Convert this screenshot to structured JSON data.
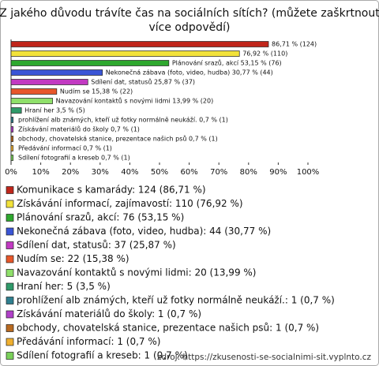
{
  "chart_data": {
    "type": "bar",
    "orientation": "horizontal",
    "title": [
      "Z jakého důvodu trávíte čas na sociálních sítích? (můžete zaškrtnout",
      "více odpovědí)"
    ],
    "categories": [
      "Komunikace s kamarády: 124 (86,71 %)",
      "Získávání informací, zajímavostí: 110 (76,92 %)",
      "Plánování srazů, akcí: 76 (53,15 %)",
      "Nekonečná zábava (foto, video, hudba): 44 (30,77 %)",
      "Sdílení dat, statusů: 37 (25,87 %)",
      "Nudím se: 22 (15,38 %)",
      "Navazování kontaktů s novými lidmi: 20 (13,99 %)",
      "Hraní her: 5 (3,5 %)",
      "prohlížení alb známých, kteří už fotky normálně neukáží.: 1 (0,7 %)",
      "Získávání materiálů do školy: 1 (0,7 %)",
      "obchody, chovatelská stanice, prezentace našich psů: 1 (0,7 %)",
      "Předávání informací: 1 (0,7 %)",
      "Sdílení fotografií a kreseb: 1 (0,7 %)"
    ],
    "values": [
      86.71,
      76.92,
      53.15,
      30.77,
      25.87,
      15.38,
      13.99,
      3.5,
      0.7,
      0.7,
      0.7,
      0.7,
      0.7
    ],
    "value_labels": [
      "86,71 % (124)",
      "76,92 % (110)",
      "Plánování srazů, akcí 53,15 % (76)",
      "Nekonečná zábava (foto, video, hudba) 30,77 % (44)",
      "Sdílení dat, statusů 25,87 % (37)",
      "Nudím se 15,38 % (22)",
      "Navazování kontaktů s novými lidmi 13,99 % (20)",
      "Hraní her 3,5 % (5)",
      "prohlížení alb známých, kteří už fotky normálně neukáží. 0,7 % (1)",
      "Získávání materiálů do školy 0,7 % (1)",
      "obchody, chovatelská stanice, prezentace našich psů 0,7 % (1)",
      "Předávání informací 0,7 % (1)",
      "Sdílení fotografií a kreseb 0,7 % (1)"
    ],
    "colors": [
      "#c0261b",
      "#f2e23a",
      "#2ea82e",
      "#3a55d6",
      "#c23ac2",
      "#e8572a",
      "#8fe06a",
      "#2f9a6a",
      "#2f7f8f",
      "#b040c8",
      "#b86a20",
      "#f0b030",
      "#7ad05a"
    ],
    "xlim": [
      0,
      100
    ],
    "xticks": [
      {
        "value": 0,
        "label": "0%"
      },
      {
        "value": 10,
        "label": "10%"
      },
      {
        "value": 20,
        "label": "20%"
      },
      {
        "value": 30,
        "label": "30%"
      },
      {
        "value": 40,
        "label": "40%"
      },
      {
        "value": 50,
        "label": "50%"
      },
      {
        "value": 60,
        "label": "60%"
      },
      {
        "value": 70,
        "label": "70%"
      },
      {
        "value": 80,
        "label": "80%"
      },
      {
        "value": 90,
        "label": "90%"
      },
      {
        "value": 100,
        "label": "100%"
      }
    ],
    "source": "zdroj: https://zkusenosti-se-socialnimi-sit.vyplnto.cz"
  }
}
